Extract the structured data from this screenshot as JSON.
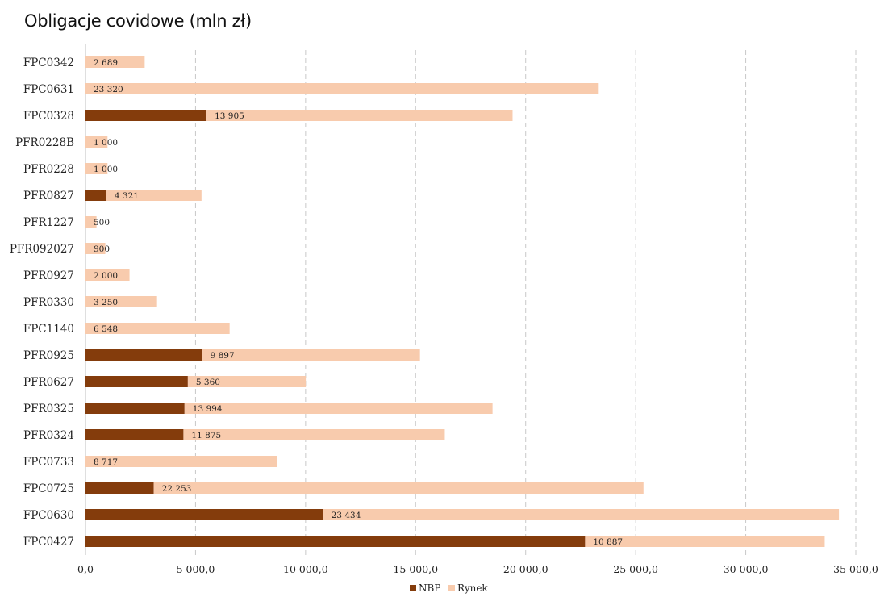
{
  "chart_data": {
    "type": "bar",
    "orientation": "horizontal",
    "stacked": true,
    "title": "Obligacje covidowe (mln zł)",
    "categories": [
      "FPC0342",
      "FPC0631",
      "FPC0328",
      "PFR0228B",
      "PFR0228",
      "PFR0827",
      "PFR1227",
      "PFR092027",
      "PFR0927",
      "PFR0330",
      "FPC1140",
      "PFR0925",
      "PFR0627",
      "PFR0325",
      "PFR0324",
      "FPC0733",
      "FPC0725",
      "FPC0630",
      "FPC0427"
    ],
    "series": [
      {
        "name": "NBP",
        "color": "#843c0c",
        "values": [
          0,
          0,
          5500,
          0,
          0,
          950,
          0,
          0,
          0,
          0,
          0,
          5300,
          4650,
          4500,
          4450,
          0,
          3100,
          10800,
          22700
        ]
      },
      {
        "name": "Rynek",
        "color": "#f8cbad",
        "values": [
          2689,
          23320,
          13905,
          1000,
          1000,
          4321,
          500,
          900,
          2000,
          3250,
          6548,
          9897,
          5360,
          13994,
          11875,
          8717,
          22253,
          23434,
          10887
        ]
      }
    ],
    "data_labels": [
      "2 689",
      "23 320",
      "13 905",
      "1 000",
      "1 000",
      "4 321",
      "500",
      "900",
      "2 000",
      "3 250",
      "6 548",
      "9 897",
      "5 360",
      "13 994",
      "11 875",
      "8 717",
      "22 253",
      "23 434",
      "10 887"
    ],
    "x_ticks": [
      0,
      5000,
      10000,
      15000,
      20000,
      25000,
      30000,
      35000
    ],
    "x_tick_labels": [
      "0,0",
      "5 000,0",
      "10 000,0",
      "15 000,0",
      "20 000,0",
      "25 000,0",
      "30 000,0",
      "35 000,0"
    ],
    "xlim": [
      0,
      35000
    ],
    "grid": "vertical-dashed",
    "legend": "bottom-center"
  }
}
